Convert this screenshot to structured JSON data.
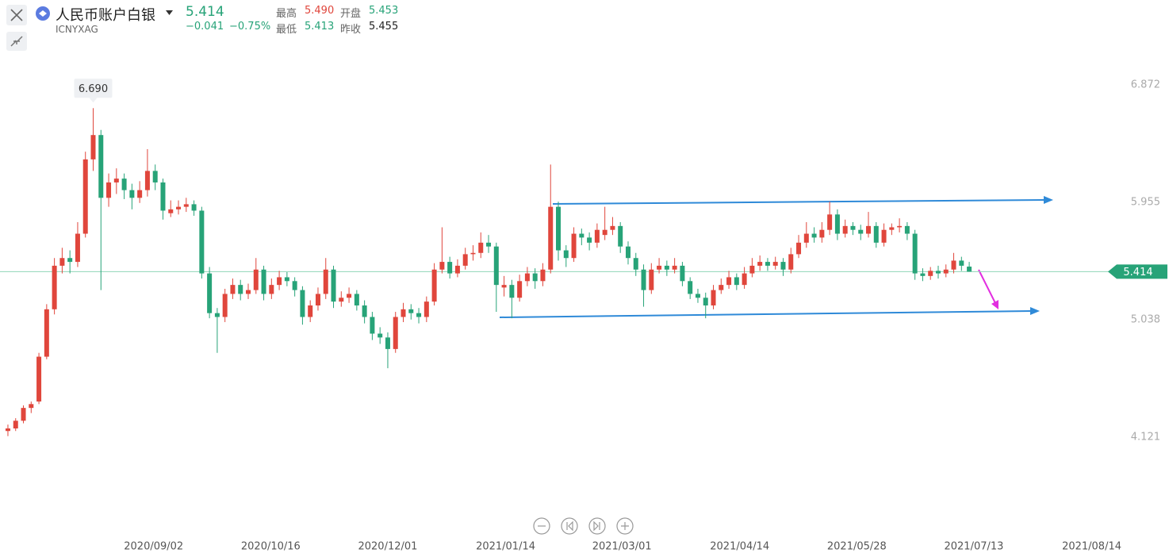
{
  "header": {
    "title": "人民币账户白银",
    "symbol": "ICNYXAG",
    "price": "5.414",
    "change": "−0.041",
    "change_pct": "−0.75%",
    "stats": [
      {
        "label": "最高",
        "value": "5.490"
      },
      {
        "label": "开盘",
        "value": "5.453"
      },
      {
        "label": "最低",
        "value": "5.413"
      },
      {
        "label": "昨收",
        "value": "5.455"
      }
    ]
  },
  "chart_data": {
    "type": "candlestick",
    "up_color": "#e0463c",
    "down_color": "#27a378",
    "grid": false,
    "ylim": [
      3.354,
      7.534
    ],
    "yticks": [
      4.121,
      5.038,
      5.955,
      6.872
    ],
    "xlim": [
      -1.02,
      142.2
    ],
    "xticks": [
      {
        "value": 18.8,
        "label": "2020/09/02"
      },
      {
        "value": 33.9,
        "label": "2020/10/16"
      },
      {
        "value": 49.0,
        "label": "2020/12/01"
      },
      {
        "value": 64.2,
        "label": "2021/01/14"
      },
      {
        "value": 79.2,
        "label": "2021/03/01"
      },
      {
        "value": 94.4,
        "label": "2021/04/14"
      },
      {
        "value": 109.5,
        "label": "2021/05/28"
      },
      {
        "value": 124.6,
        "label": "2021/07/13"
      },
      {
        "value": 139.8,
        "label": "2021/08/14"
      }
    ],
    "high_marker": {
      "value": 6.69,
      "label": "6.690",
      "index": 11
    },
    "last_price": 5.414,
    "values": [
      [
        4.17,
        4.22,
        4.13,
        4.19
      ],
      [
        4.19,
        4.27,
        4.17,
        4.25
      ],
      [
        4.25,
        4.37,
        4.23,
        4.35
      ],
      [
        4.35,
        4.4,
        4.31,
        4.38
      ],
      [
        4.4,
        4.78,
        4.38,
        4.75
      ],
      [
        4.75,
        5.16,
        4.73,
        5.12
      ],
      [
        5.12,
        5.52,
        5.08,
        5.46
      ],
      [
        5.46,
        5.6,
        5.4,
        5.52
      ],
      [
        5.52,
        5.58,
        5.4,
        5.49
      ],
      [
        5.49,
        5.8,
        5.45,
        5.71
      ],
      [
        5.71,
        6.35,
        5.68,
        6.29
      ],
      [
        6.29,
        6.69,
        6.2,
        6.48
      ],
      [
        6.48,
        6.52,
        5.27,
        5.99
      ],
      [
        5.99,
        6.18,
        5.92,
        6.11
      ],
      [
        6.11,
        6.22,
        6.02,
        6.14
      ],
      [
        6.14,
        6.18,
        5.98,
        6.05
      ],
      [
        6.05,
        6.1,
        5.9,
        5.99
      ],
      [
        5.99,
        6.12,
        5.95,
        6.05
      ],
      [
        6.05,
        6.37,
        6.0,
        6.2
      ],
      [
        6.2,
        6.25,
        6.05,
        6.11
      ],
      [
        6.11,
        6.14,
        5.82,
        5.89
      ],
      [
        5.87,
        5.97,
        5.84,
        5.9
      ],
      [
        5.9,
        5.97,
        5.86,
        5.92
      ],
      [
        5.92,
        5.99,
        5.88,
        5.94
      ],
      [
        5.94,
        5.97,
        5.85,
        5.89
      ],
      [
        5.89,
        5.92,
        5.36,
        5.4
      ],
      [
        5.4,
        5.45,
        5.05,
        5.09
      ],
      [
        5.09,
        5.13,
        4.78,
        5.06
      ],
      [
        5.06,
        5.28,
        5.02,
        5.24
      ],
      [
        5.24,
        5.36,
        5.2,
        5.31
      ],
      [
        5.31,
        5.35,
        5.19,
        5.24
      ],
      [
        5.24,
        5.32,
        5.2,
        5.27
      ],
      [
        5.27,
        5.52,
        5.24,
        5.43
      ],
      [
        5.43,
        5.46,
        5.19,
        5.24
      ],
      [
        5.24,
        5.36,
        5.2,
        5.31
      ],
      [
        5.31,
        5.42,
        5.27,
        5.37
      ],
      [
        5.37,
        5.41,
        5.3,
        5.34
      ],
      [
        5.34,
        5.37,
        5.22,
        5.27
      ],
      [
        5.27,
        5.3,
        5.0,
        5.06
      ],
      [
        5.06,
        5.19,
        5.02,
        5.15
      ],
      [
        5.15,
        5.29,
        5.11,
        5.24
      ],
      [
        5.24,
        5.52,
        5.2,
        5.43
      ],
      [
        5.43,
        5.46,
        5.13,
        5.18
      ],
      [
        5.18,
        5.26,
        5.14,
        5.21
      ],
      [
        5.21,
        5.29,
        5.17,
        5.24
      ],
      [
        5.24,
        5.27,
        5.11,
        5.15
      ],
      [
        5.15,
        5.19,
        5.01,
        5.06
      ],
      [
        5.06,
        5.1,
        4.88,
        4.93
      ],
      [
        4.93,
        4.98,
        4.85,
        4.9
      ],
      [
        4.9,
        4.94,
        4.66,
        4.81
      ],
      [
        4.81,
        5.1,
        4.78,
        5.06
      ],
      [
        5.06,
        5.17,
        5.02,
        5.12
      ],
      [
        5.12,
        5.16,
        5.04,
        5.09
      ],
      [
        5.09,
        5.13,
        5.01,
        5.06
      ],
      [
        5.06,
        5.22,
        5.02,
        5.18
      ],
      [
        5.18,
        5.48,
        5.15,
        5.43
      ],
      [
        5.43,
        5.76,
        5.4,
        5.49
      ],
      [
        5.49,
        5.53,
        5.36,
        5.4
      ],
      [
        5.4,
        5.51,
        5.37,
        5.46
      ],
      [
        5.46,
        5.6,
        5.43,
        5.55
      ],
      [
        5.55,
        5.62,
        5.5,
        5.56
      ],
      [
        5.56,
        5.72,
        5.52,
        5.64
      ],
      [
        5.64,
        5.7,
        5.56,
        5.61
      ],
      [
        5.61,
        5.64,
        5.1,
        5.31
      ],
      [
        5.29,
        5.38,
        5.22,
        5.31
      ],
      [
        5.31,
        5.35,
        5.05,
        5.21
      ],
      [
        5.21,
        5.39,
        5.18,
        5.34
      ],
      [
        5.34,
        5.45,
        5.3,
        5.4
      ],
      [
        5.4,
        5.44,
        5.28,
        5.34
      ],
      [
        5.34,
        5.48,
        5.3,
        5.43
      ],
      [
        5.43,
        6.25,
        5.4,
        5.92
      ],
      [
        5.92,
        5.96,
        5.5,
        5.58
      ],
      [
        5.58,
        5.62,
        5.45,
        5.52
      ],
      [
        5.52,
        5.76,
        5.49,
        5.71
      ],
      [
        5.71,
        5.75,
        5.62,
        5.68
      ],
      [
        5.68,
        5.72,
        5.58,
        5.64
      ],
      [
        5.64,
        5.79,
        5.6,
        5.74
      ],
      [
        5.7,
        5.92,
        5.66,
        5.74
      ],
      [
        5.74,
        5.84,
        5.7,
        5.77
      ],
      [
        5.77,
        5.8,
        5.56,
        5.61
      ],
      [
        5.61,
        5.65,
        5.47,
        5.52
      ],
      [
        5.52,
        5.56,
        5.38,
        5.43
      ],
      [
        5.43,
        5.47,
        5.14,
        5.27
      ],
      [
        5.27,
        5.48,
        5.24,
        5.43
      ],
      [
        5.43,
        5.52,
        5.4,
        5.46
      ],
      [
        5.46,
        5.5,
        5.38,
        5.43
      ],
      [
        5.43,
        5.52,
        5.4,
        5.46
      ],
      [
        5.46,
        5.49,
        5.3,
        5.34
      ],
      [
        5.34,
        5.37,
        5.2,
        5.24
      ],
      [
        5.24,
        5.28,
        5.17,
        5.21
      ],
      [
        5.21,
        5.25,
        5.05,
        5.15
      ],
      [
        5.15,
        5.31,
        5.12,
        5.27
      ],
      [
        5.27,
        5.36,
        5.24,
        5.31
      ],
      [
        5.31,
        5.42,
        5.28,
        5.37
      ],
      [
        5.37,
        5.4,
        5.27,
        5.31
      ],
      [
        5.31,
        5.45,
        5.28,
        5.4
      ],
      [
        5.4,
        5.52,
        5.37,
        5.46
      ],
      [
        5.46,
        5.54,
        5.42,
        5.49
      ],
      [
        5.49,
        5.52,
        5.42,
        5.46
      ],
      [
        5.46,
        5.53,
        5.43,
        5.49
      ],
      [
        5.49,
        5.52,
        5.38,
        5.43
      ],
      [
        5.43,
        5.6,
        5.4,
        5.55
      ],
      [
        5.55,
        5.7,
        5.52,
        5.64
      ],
      [
        5.64,
        5.8,
        5.6,
        5.71
      ],
      [
        5.71,
        5.76,
        5.64,
        5.68
      ],
      [
        5.68,
        5.8,
        5.64,
        5.74
      ],
      [
        5.74,
        5.96,
        5.7,
        5.86
      ],
      [
        5.86,
        5.9,
        5.66,
        5.71
      ],
      [
        5.71,
        5.82,
        5.68,
        5.77
      ],
      [
        5.77,
        5.8,
        5.7,
        5.74
      ],
      [
        5.74,
        5.78,
        5.66,
        5.71
      ],
      [
        5.71,
        5.88,
        5.68,
        5.77
      ],
      [
        5.77,
        5.8,
        5.6,
        5.64
      ],
      [
        5.64,
        5.79,
        5.61,
        5.74
      ],
      [
        5.74,
        5.79,
        5.7,
        5.76
      ],
      [
        5.76,
        5.83,
        5.72,
        5.77
      ],
      [
        5.77,
        5.8,
        5.66,
        5.71
      ],
      [
        5.71,
        5.74,
        5.35,
        5.4
      ],
      [
        5.4,
        5.44,
        5.34,
        5.38
      ],
      [
        5.38,
        5.45,
        5.35,
        5.42
      ],
      [
        5.42,
        5.46,
        5.36,
        5.4
      ],
      [
        5.4,
        5.47,
        5.37,
        5.43
      ],
      [
        5.43,
        5.56,
        5.4,
        5.5
      ],
      [
        5.5,
        5.53,
        5.42,
        5.46
      ],
      [
        5.453,
        5.49,
        5.413,
        5.414
      ]
    ]
  }
}
